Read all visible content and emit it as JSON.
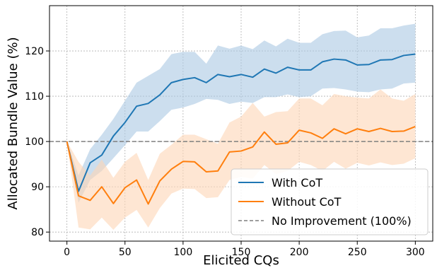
{
  "chart_data": {
    "type": "line",
    "xlabel": "Elicited CQs",
    "ylabel": "Allocated Bundle Value (%)",
    "xlim": [
      -15,
      315
    ],
    "ylim": [
      78,
      130
    ],
    "x_ticks": [
      0,
      50,
      100,
      150,
      200,
      250,
      300
    ],
    "y_ticks": [
      80,
      90,
      100,
      110,
      120
    ],
    "grid": true,
    "legend_position": "lower-right",
    "x": [
      0,
      10,
      20,
      30,
      40,
      50,
      60,
      70,
      80,
      90,
      100,
      110,
      120,
      130,
      140,
      150,
      160,
      170,
      180,
      190,
      200,
      210,
      220,
      230,
      240,
      250,
      260,
      270,
      280,
      290,
      300
    ],
    "series": [
      {
        "name": "With CoT",
        "color": "#1f77b4",
        "band_color": "#aac8e2",
        "values": [
          100,
          89,
          95.3,
          97,
          101.2,
          104.2,
          107.8,
          108.4,
          110.3,
          113,
          113.7,
          114.1,
          113,
          114.8,
          114.3,
          114.8,
          114.2,
          116,
          115.1,
          116.4,
          115.8,
          115.8,
          117.6,
          118.2,
          118,
          116.9,
          117,
          118,
          118.1,
          119,
          119.3
        ],
        "upper": [
          100,
          92.5,
          98.3,
          101.5,
          105,
          109,
          113,
          114.5,
          116,
          119.3,
          119.8,
          119.8,
          117.2,
          121.2,
          120.5,
          121.2,
          120.4,
          122.3,
          121,
          122.7,
          121.8,
          121.8,
          123.7,
          124.4,
          124.5,
          123,
          123.4,
          125,
          125,
          125.6,
          126
        ],
        "lower": [
          100,
          86.5,
          91.5,
          93.5,
          96.3,
          99.2,
          102.2,
          102.2,
          104.5,
          107,
          107.5,
          108.3,
          109.4,
          109.2,
          108.3,
          108.8,
          108.5,
          109.8,
          109.8,
          110.4,
          109.8,
          110,
          111.7,
          111.8,
          111.5,
          111,
          110.9,
          111.5,
          111.7,
          112.8,
          113
        ]
      },
      {
        "name": "Without CoT",
        "color": "#ff7f0e",
        "band_color": "#fdd6b5",
        "values": [
          100,
          88,
          87,
          90,
          86.3,
          89.8,
          91.5,
          86.2,
          91.3,
          93.9,
          95.6,
          95.5,
          93.3,
          93.5,
          97.7,
          97.9,
          98.8,
          102.1,
          99.4,
          99.7,
          102.5,
          101.9,
          100.7,
          102.8,
          101.7,
          102.8,
          102.2,
          102.9,
          102.2,
          102.3,
          103.3
        ],
        "upper": [
          100,
          95.5,
          92.5,
          96,
          92,
          95.5,
          97.5,
          91.5,
          97.3,
          99.3,
          101.5,
          101.5,
          100.5,
          99.5,
          104.2,
          105.5,
          108.5,
          105.5,
          106.5,
          106.7,
          109.5,
          109.5,
          108,
          110.5,
          110,
          109.7,
          109.5,
          111.5,
          109.5,
          109,
          110.5
        ],
        "lower": [
          100,
          81,
          80.6,
          83.2,
          80.5,
          83.2,
          84.9,
          81,
          85.3,
          88.5,
          89.6,
          89.5,
          87.5,
          87.7,
          91.5,
          92.2,
          91.8,
          94.8,
          92.8,
          93.5,
          95.5,
          94.8,
          93.5,
          95.5,
          94,
          95.3,
          94.7,
          95.4,
          94.8,
          95.1,
          96.3
        ]
      }
    ],
    "reference_line": {
      "y": 100,
      "name": "No Improvement (100%)",
      "color": "#7f7f7f"
    }
  }
}
